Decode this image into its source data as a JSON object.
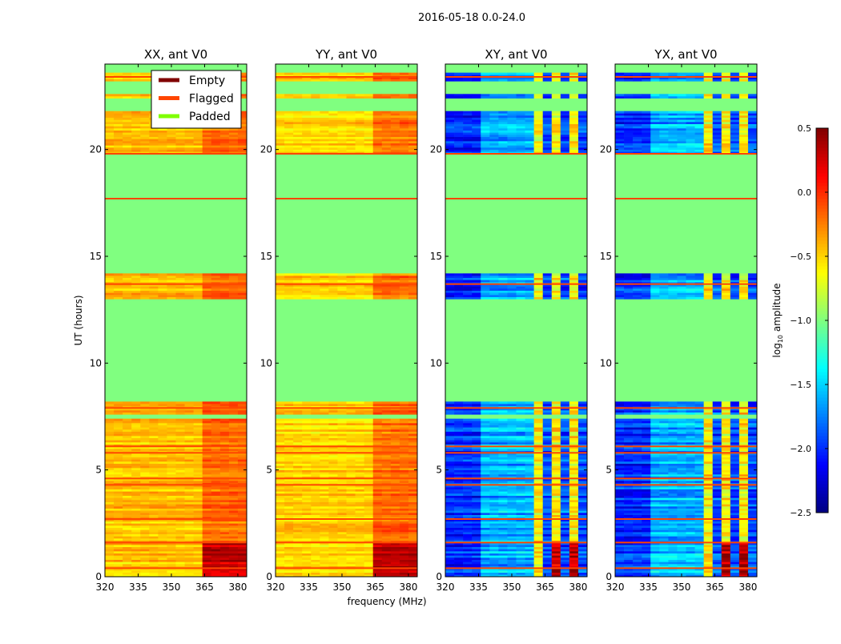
{
  "chart_data": {
    "type": "heatmap",
    "title": "2016-05-18 0.0-24.0",
    "xlabel": "frequency (MHz)",
    "ylabel": "UT (hours)",
    "xlim": [
      320,
      384
    ],
    "ylim": [
      0,
      24
    ],
    "xticks": [
      "320",
      "335",
      "350",
      "365",
      "380"
    ],
    "yticks": [
      "0",
      "5",
      "10",
      "15",
      "20"
    ],
    "colorbar": {
      "label_prefix": "log",
      "label_sub": "10",
      "label_suffix": " amplitude",
      "range": [
        -2.5,
        0.5
      ],
      "ticks": [
        "0.5",
        "0.0",
        "−0.5",
        "−1.0",
        "−1.5",
        "−2.0",
        "−2.5"
      ],
      "tick_values": [
        0.5,
        0.0,
        -0.5,
        -1.0,
        -1.5,
        -2.0,
        -2.5
      ],
      "colormap": "jet"
    },
    "legend": {
      "placement": "top-right of first panel",
      "items": [
        {
          "label": "Empty",
          "color": "#800000"
        },
        {
          "label": "Flagged",
          "color": "#ff4500"
        },
        {
          "label": "Padded",
          "color": "#7fff00"
        }
      ]
    },
    "padded_value": -1.0,
    "data_segments_hours": [
      [
        0,
        7.4
      ],
      [
        7.6,
        8.2
      ],
      [
        13.0,
        14.2
      ],
      [
        19.8,
        21.8
      ],
      [
        22.4,
        22.6
      ],
      [
        23.2,
        23.6
      ]
    ],
    "flagged_times_hours": [
      0.4,
      1.6,
      2.7,
      4.3,
      4.6,
      5.8,
      6.1,
      7.9,
      13.7,
      17.7,
      19.8,
      23.4
    ],
    "freq_bins_mhz": [
      320,
      324,
      328,
      332,
      336,
      340,
      344,
      348,
      352,
      356,
      360,
      364,
      368,
      372,
      376,
      380
    ],
    "panels": [
      {
        "title": "XX, ant V0",
        "kind": "auto",
        "level_low_freq": -0.45,
        "level_high_freq": -0.2,
        "level_high_freq_early": 0.3
      },
      {
        "title": "YY, ant V0",
        "kind": "auto",
        "level_low_freq": -0.5,
        "level_high_freq": -0.2,
        "level_high_freq_early": 0.35
      },
      {
        "title": "XY, ant V0",
        "kind": "cross",
        "level_low_freq": -2.0,
        "level_mid_freq": -1.6,
        "level_stripe_high": -0.6,
        "level_stripe_low": -1.9
      },
      {
        "title": "YX, ant V0",
        "kind": "cross",
        "level_low_freq": -2.0,
        "level_mid_freq": -1.6,
        "level_stripe_high": -0.6,
        "level_stripe_low": -1.9
      }
    ]
  }
}
